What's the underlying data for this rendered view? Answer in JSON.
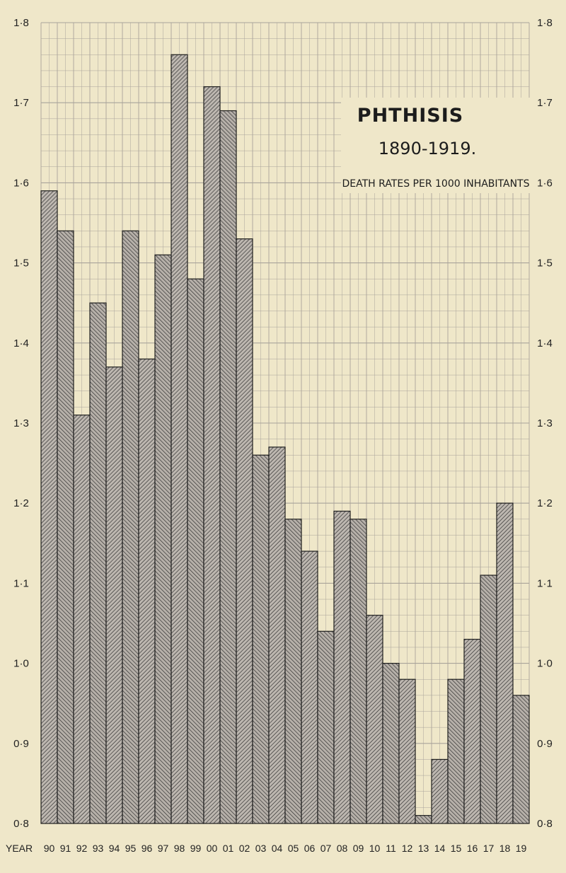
{
  "chart_data": {
    "type": "bar",
    "title": "PHTHISIS",
    "subtitle": "1890-1919.",
    "note": "DEATH RATES PER 1000 INHABITANTS",
    "xlabel": "YEAR",
    "ylabel": "",
    "ylim": [
      0.8,
      1.8
    ],
    "y_ticks_left": [
      "1·8",
      "1·7",
      "1·6",
      "1·5",
      "1·4",
      "1·3",
      "1·2",
      "1·1",
      "1·0",
      "0·9",
      "0·8"
    ],
    "y_ticks_right": [
      "1·8",
      "1·7",
      "1·6",
      "1·5",
      "1·4",
      "1·3",
      "1·2",
      "1·1",
      "1·0",
      "0·9",
      "0·8"
    ],
    "y_tick_values": [
      1.8,
      1.7,
      1.6,
      1.5,
      1.4,
      1.3,
      1.2,
      1.1,
      1.0,
      0.9,
      0.8
    ],
    "categories": [
      "90",
      "91",
      "92",
      "93",
      "94",
      "95",
      "96",
      "97",
      "98",
      "99",
      "00",
      "01",
      "02",
      "03",
      "04",
      "05",
      "06",
      "07",
      "08",
      "09",
      "10",
      "11",
      "12",
      "13",
      "14",
      "15",
      "16",
      "17",
      "18",
      "19"
    ],
    "values": [
      1.59,
      1.54,
      1.31,
      1.45,
      1.37,
      1.54,
      1.38,
      1.51,
      1.76,
      1.48,
      1.72,
      1.69,
      1.53,
      1.26,
      1.27,
      1.18,
      1.14,
      1.04,
      1.19,
      1.18,
      1.06,
      1.0,
      0.98,
      0.81,
      0.88,
      0.98,
      1.03,
      1.11,
      1.2,
      0.96
    ],
    "grid": true,
    "legend": "none"
  },
  "colors": {
    "paper": "#efe7c9",
    "grid": "#a9a39a",
    "bar_fill": "#bdb7b0",
    "hatch": "#2a2a2a",
    "text": "#1c1c1c"
  }
}
